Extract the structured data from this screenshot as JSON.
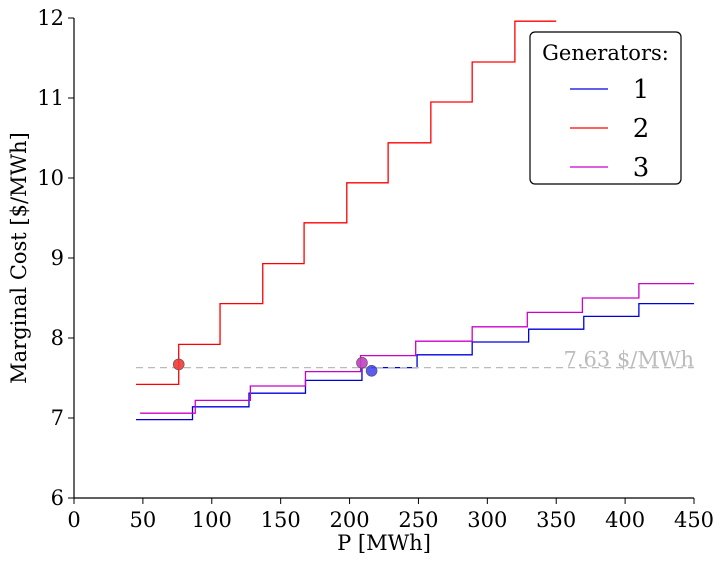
{
  "chart_data": {
    "type": "line",
    "step": true,
    "xlabel": "P [MWh]",
    "ylabel": "Marginal Cost [$/MWh]",
    "xlim": [
      0,
      450
    ],
    "ylim": [
      6,
      12
    ],
    "xticks": [
      0,
      50,
      100,
      150,
      200,
      250,
      300,
      350,
      400,
      450
    ],
    "yticks": [
      6,
      7,
      8,
      9,
      10,
      11,
      12
    ],
    "grid": false,
    "legend": {
      "title": "Generators:",
      "placement": "top-right"
    },
    "series": [
      {
        "name": "1",
        "color": "#0000dd",
        "x": [
          45,
          86,
          127,
          168,
          209,
          249,
          289,
          330,
          370,
          410,
          450
        ],
        "y": [
          6.98,
          7.14,
          7.31,
          7.47,
          7.63,
          7.79,
          7.95,
          8.11,
          8.27,
          8.43,
          8.43
        ]
      },
      {
        "name": "2",
        "color": "#ff0000",
        "x": [
          45,
          76,
          106,
          137,
          167,
          198,
          228,
          259,
          289,
          320,
          350
        ],
        "y": [
          7.42,
          7.92,
          8.43,
          8.93,
          9.44,
          9.94,
          10.44,
          10.95,
          11.45,
          11.96,
          11.96
        ]
      },
      {
        "name": "3",
        "color": "#cc00cc",
        "x": [
          48,
          88,
          128,
          168,
          208,
          248,
          289,
          329,
          369,
          410,
          450
        ],
        "y": [
          7.06,
          7.22,
          7.4,
          7.58,
          7.78,
          7.96,
          8.14,
          8.32,
          8.5,
          8.68,
          8.68
        ]
      }
    ],
    "dispatch_points": [
      {
        "series": "1",
        "x": 216,
        "y": 7.59,
        "color": "#4a4aee"
      },
      {
        "series": "2",
        "x": 76,
        "y": 7.67,
        "color": "#ee3a3a"
      },
      {
        "series": "3",
        "x": 209,
        "y": 7.69,
        "color": "#c040c0"
      }
    ],
    "price_line": {
      "y": 7.63,
      "x_start": 45,
      "x_end": 450,
      "label": "7.63 $/MWh",
      "color": "#bbbbbb"
    }
  }
}
